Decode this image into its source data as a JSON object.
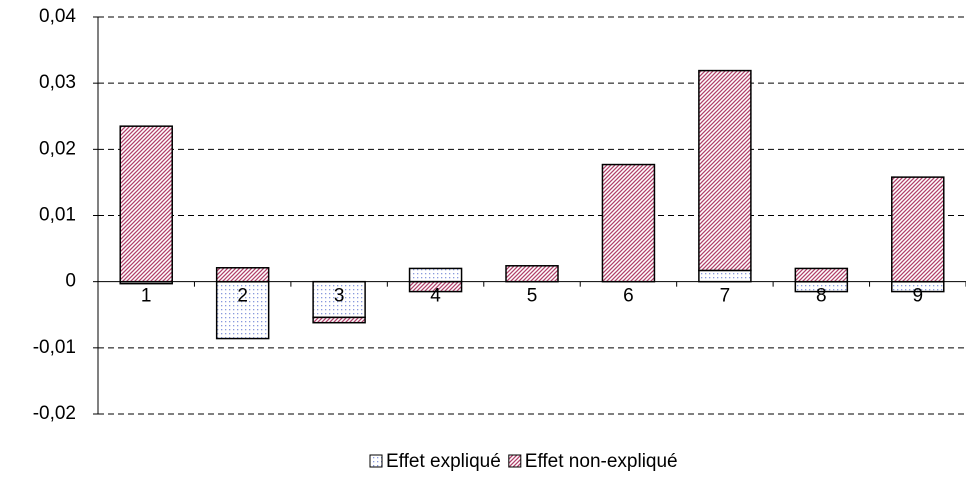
{
  "chart_data": {
    "type": "bar",
    "stacked": true,
    "categories": [
      "1",
      "2",
      "3",
      "4",
      "5",
      "6",
      "7",
      "8",
      "9"
    ],
    "series": [
      {
        "name": "Effet expliqué",
        "color": "#8899dd",
        "values": [
          -0.0003,
          -0.0086,
          -0.0054,
          0.002,
          0,
          0,
          0.0017,
          -0.0015,
          -0.0015
        ]
      },
      {
        "name": "Effet non-expliqué",
        "color": "#b0406a",
        "values": [
          0.0235,
          0.0021,
          -0.0008,
          -0.0015,
          0.0024,
          0.0177,
          0.0302,
          0.002,
          0.0158
        ]
      }
    ],
    "ylim": [
      -0.02,
      0.04
    ],
    "yticks": [
      {
        "value": -0.02,
        "label": "-0,02"
      },
      {
        "value": -0.01,
        "label": "-0,01"
      },
      0,
      {
        "value": 0.01,
        "label": "0,01"
      },
      {
        "value": 0.02,
        "label": "0,02"
      },
      {
        "value": 0.03,
        "label": "0,03"
      },
      {
        "value": 0.04,
        "label": "0,04"
      }
    ],
    "grid": true,
    "legend": "bottom"
  }
}
